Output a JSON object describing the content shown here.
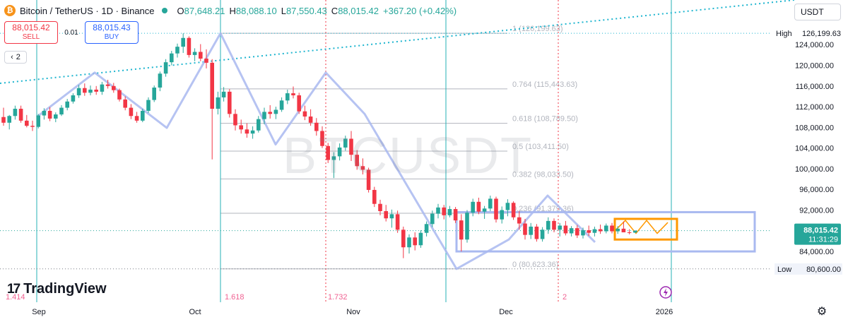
{
  "header": {
    "symbol_title": "Bitcoin / TetherUS · 1D · Binance",
    "coin_glyph": "₿",
    "open_label": "O",
    "open": "87,648.21",
    "high_label": "H",
    "high": "88,088.10",
    "low_label": "L",
    "low": "87,550.43",
    "close_label": "C",
    "close": "88,015.42",
    "change": "+367.20 (+0.42%)"
  },
  "trade": {
    "sell_price": "88,015.42",
    "sell_label": "SELL",
    "spread": "0.01",
    "buy_price": "88,015.43",
    "buy_label": "BUY"
  },
  "indicator_toggle": {
    "arrow": "‹",
    "count": "2"
  },
  "currency_select": {
    "value": "USDT"
  },
  "watermark": "BTCUSDT",
  "logo": {
    "mark": "17",
    "text": "TradingView"
  },
  "colors": {
    "up": "#26a69a",
    "down": "#f23645",
    "fib": "#b2b5be",
    "zigzag": "#a9b9f0",
    "trend": "#1eb5cf",
    "rect_blue": "#a9b9f0",
    "rect_orange": "#ff9800",
    "vline": "#26b0b5",
    "vline_red": "#f23645"
  },
  "icons": {
    "settings": "gear-icon",
    "lightning": "lightning-icon"
  },
  "chart_data": {
    "type": "candlestick",
    "symbol": "BTCUSDT",
    "timeframe": "1D",
    "x_ticks": [
      "Sep",
      "Oct",
      "Nov",
      "Dec",
      "2026"
    ],
    "y_ticks": [
      "124,000.00",
      "120,000.00",
      "116,000.00",
      "112,000.00",
      "108,000.00",
      "104,000.00",
      "100,000.00",
      "96,000.00",
      "92,000.00",
      "84,000.00"
    ],
    "ylim": [
      78000,
      131000
    ],
    "high_label": "High",
    "high_value": "126,199.63",
    "low_label": "Low",
    "low_value": "80,600.00",
    "last_price": "88,015.42",
    "countdown": "11:31:29",
    "grid": false,
    "fib_levels": [
      {
        "ratio": "1",
        "label": "1 (126,199.63)",
        "price": 126199.63
      },
      {
        "ratio": "0.764",
        "label": "0.764 (115,443.63)",
        "price": 115443.63
      },
      {
        "ratio": "0.618",
        "label": "0.618 (108,789.50)",
        "price": 108789.5
      },
      {
        "ratio": "0.5",
        "label": "0.5 (103,411.50)",
        "price": 103411.5
      },
      {
        "ratio": "0.382",
        "label": "0.382 (98,033.50)",
        "price": 98033.5
      },
      {
        "ratio": "0.236",
        "label": "0.236 (91,379.36)",
        "price": 91379.36
      },
      {
        "ratio": "0",
        "label": "0 (80,623.36)",
        "price": 80623.36
      }
    ],
    "fib_time_labels": [
      "1.414",
      "1.618",
      "1.732",
      "2"
    ],
    "candles": [
      [
        110000,
        111800,
        108300,
        108900
      ],
      [
        108900,
        110400,
        107600,
        110200
      ],
      [
        110200,
        112200,
        109500,
        111600
      ],
      [
        111600,
        112200,
        108900,
        109300
      ],
      [
        109300,
        110400,
        108000,
        108300
      ],
      [
        108300,
        109300,
        107300,
        108100
      ],
      [
        108100,
        110600,
        107800,
        110300
      ],
      [
        110300,
        111700,
        109500,
        111200
      ],
      [
        111200,
        111900,
        109200,
        109700
      ],
      [
        109700,
        110900,
        109000,
        110500
      ],
      [
        110500,
        112300,
        110200,
        111800
      ],
      [
        111800,
        113500,
        111300,
        113000
      ],
      [
        113000,
        114600,
        112600,
        114200
      ],
      [
        114200,
        116200,
        113700,
        115600
      ],
      [
        115600,
        116500,
        114100,
        114700
      ],
      [
        114700,
        116100,
        114200,
        115300
      ],
      [
        115300,
        116000,
        114300,
        114900
      ],
      [
        114900,
        116800,
        114300,
        116300
      ],
      [
        116300,
        117200,
        115500,
        116000
      ],
      [
        116000,
        116600,
        114700,
        115200
      ],
      [
        115200,
        115500,
        113000,
        113400
      ],
      [
        113400,
        114000,
        111300,
        111800
      ],
      [
        111800,
        112500,
        109600,
        110200
      ],
      [
        110200,
        111000,
        108900,
        109300
      ],
      [
        109300,
        111600,
        109000,
        111200
      ],
      [
        111200,
        113800,
        110800,
        113300
      ],
      [
        113300,
        116100,
        112900,
        115700
      ],
      [
        115700,
        118800,
        115000,
        118400
      ],
      [
        118400,
        121200,
        117800,
        120600
      ],
      [
        120600,
        122800,
        120000,
        122300
      ],
      [
        122300,
        124200,
        121500,
        123600
      ],
      [
        123600,
        126200,
        122400,
        125300
      ],
      [
        125300,
        125600,
        121500,
        122000
      ],
      [
        122000,
        123300,
        120800,
        122600
      ],
      [
        122600,
        124100,
        120800,
        121300
      ],
      [
        121300,
        123100,
        119400,
        120500
      ],
      [
        120500,
        121200,
        101800,
        111600
      ],
      [
        111600,
        114900,
        110500,
        113800
      ],
      [
        113800,
        115800,
        113000,
        114900
      ],
      [
        114900,
        115400,
        109900,
        110600
      ],
      [
        110600,
        111500,
        107400,
        108400
      ],
      [
        108400,
        109500,
        106800,
        107600
      ],
      [
        107600,
        108800,
        106000,
        106800
      ],
      [
        106800,
        108200,
        105800,
        107400
      ],
      [
        107400,
        110200,
        107000,
        109600
      ],
      [
        109600,
        111800,
        108600,
        111000
      ],
      [
        111000,
        112300,
        109700,
        110600
      ],
      [
        110600,
        112000,
        109600,
        111400
      ],
      [
        111400,
        113800,
        111000,
        113200
      ],
      [
        113200,
        115300,
        112500,
        114600
      ],
      [
        114600,
        115900,
        113600,
        114200
      ],
      [
        114200,
        114700,
        110600,
        111100
      ],
      [
        111100,
        112200,
        109400,
        110100
      ],
      [
        110100,
        111500,
        108300,
        108900
      ],
      [
        108900,
        109800,
        106400,
        107300
      ],
      [
        107300,
        108200,
        104000,
        104400
      ],
      [
        104400,
        105000,
        101100,
        101700
      ],
      [
        101700,
        103200,
        98200,
        102400
      ],
      [
        102400,
        104900,
        101600,
        104100
      ],
      [
        104100,
        106400,
        103500,
        105800
      ],
      [
        105800,
        107300,
        101500,
        102700
      ],
      [
        102700,
        103600,
        99800,
        100500
      ],
      [
        100500,
        102000,
        98900,
        99800
      ],
      [
        99800,
        100200,
        95400,
        95900
      ],
      [
        95900,
        96500,
        92600,
        93200
      ],
      [
        93200,
        94000,
        91000,
        91800
      ],
      [
        91800,
        93000,
        89800,
        90400
      ],
      [
        90400,
        92100,
        88600,
        91200
      ],
      [
        91200,
        91900,
        87600,
        88200
      ],
      [
        88200,
        88800,
        82700,
        84800
      ],
      [
        84800,
        87300,
        83600,
        86700
      ],
      [
        86700,
        87700,
        84200,
        85200
      ],
      [
        85200,
        88100,
        84700,
        87600
      ],
      [
        87600,
        89800,
        86900,
        89300
      ],
      [
        89300,
        91900,
        88700,
        91300
      ],
      [
        91300,
        93200,
        90400,
        92500
      ],
      [
        92500,
        93000,
        90200,
        91000
      ],
      [
        91000,
        92800,
        90600,
        92200
      ],
      [
        92200,
        92600,
        89500,
        90000
      ],
      [
        90000,
        91200,
        84000,
        86300
      ],
      [
        86300,
        92000,
        85700,
        91500
      ],
      [
        91500,
        94200,
        90800,
        93600
      ],
      [
        93600,
        94400,
        91200,
        91700
      ],
      [
        91700,
        92800,
        90300,
        92300
      ],
      [
        92300,
        94800,
        91800,
        94200
      ],
      [
        94200,
        94600,
        89600,
        90200
      ],
      [
        90200,
        92700,
        89400,
        92000
      ],
      [
        92000,
        94100,
        90800,
        93400
      ],
      [
        93400,
        93700,
        90100,
        90600
      ],
      [
        90600,
        91800,
        88200,
        89400
      ],
      [
        89400,
        90300,
        86300,
        87200
      ],
      [
        87200,
        89500,
        86400,
        88800
      ],
      [
        88800,
        89300,
        85900,
        86400
      ],
      [
        86400,
        88700,
        85900,
        88200
      ],
      [
        88200,
        90600,
        87400,
        89900
      ],
      [
        89900,
        90400,
        87700,
        88200
      ],
      [
        88200,
        89500,
        86900,
        89000
      ],
      [
        89000,
        89900,
        87100,
        87500
      ],
      [
        87500,
        88900,
        86900,
        88500
      ],
      [
        88500,
        89100,
        86600,
        87100
      ],
      [
        87100,
        88600,
        86500,
        88100
      ],
      [
        88100,
        89000,
        87000,
        87600
      ],
      [
        87600,
        88800,
        86900,
        88300
      ],
      [
        88300,
        89200,
        87400,
        87900
      ],
      [
        87900,
        89400,
        87500,
        89000
      ],
      [
        89000,
        89500,
        87500,
        87900
      ],
      [
        87900,
        88900,
        87400,
        88400
      ],
      [
        88400,
        89800,
        87900,
        87700
      ],
      [
        87700,
        88300,
        87300,
        87648
      ],
      [
        87648,
        88088,
        87550,
        88015
      ]
    ]
  }
}
